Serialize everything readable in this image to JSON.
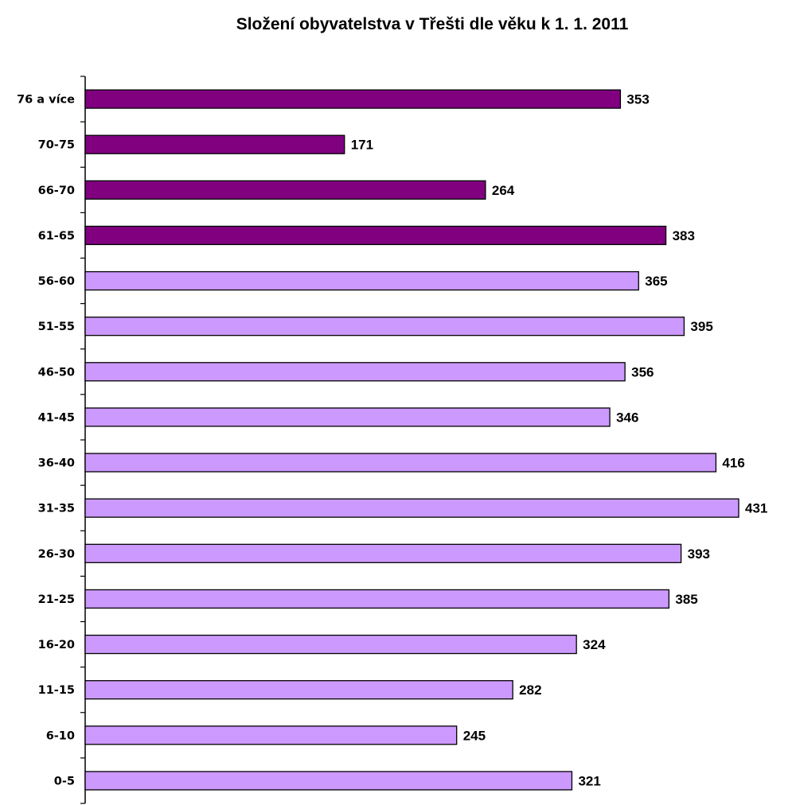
{
  "chart_data": {
    "type": "bar",
    "orientation": "horizontal",
    "title": "Složení obyvatelstva v Třešti dle věku k 1. 1. 2011",
    "xlabel": "",
    "ylabel": "",
    "categories": [
      "0-5",
      "6-10",
      "11-15",
      "16-20",
      "21-25",
      "26-30",
      "31-35",
      "36-40",
      "41-45",
      "46-50",
      "51-55",
      "56-60",
      "61-65",
      "66-70",
      "70-75",
      "76 a více"
    ],
    "values": [
      321,
      245,
      282,
      324,
      385,
      393,
      431,
      416,
      346,
      356,
      395,
      365,
      383,
      264,
      171,
      353
    ],
    "bar_colors": [
      "#cc99ff",
      "#cc99ff",
      "#cc99ff",
      "#cc99ff",
      "#cc99ff",
      "#cc99ff",
      "#cc99ff",
      "#cc99ff",
      "#cc99ff",
      "#cc99ff",
      "#cc99ff",
      "#cc99ff",
      "#800080",
      "#800080",
      "#800080",
      "#800080"
    ],
    "xlim": [
      0,
      431
    ],
    "grid": false,
    "legend": "none",
    "data_labels": true
  }
}
